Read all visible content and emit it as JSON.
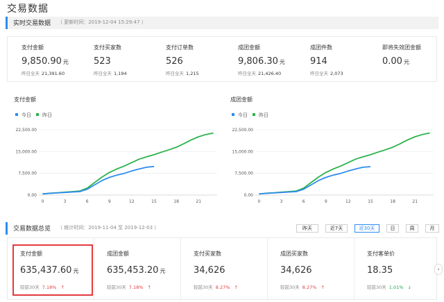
{
  "page": {
    "title": "交易数据"
  },
  "realtime": {
    "title": "实时交易数据",
    "update_time": "（ 更新时间：2019-12-04 15:29:47 ）",
    "metrics": [
      {
        "label": "支付金额",
        "value": "9,850.90",
        "unit": "元",
        "sub_label": "昨日全天",
        "sub_value": "21,391.60"
      },
      {
        "label": "支付买家数",
        "value": "523",
        "unit": "",
        "sub_label": "昨日全天",
        "sub_value": "1,194"
      },
      {
        "label": "支付订单数",
        "value": "526",
        "unit": "",
        "sub_label": "昨日全天",
        "sub_value": "1,215"
      },
      {
        "label": "成团金额",
        "value": "9,806.30",
        "unit": "元",
        "sub_label": "昨日全天",
        "sub_value": "21,426.40"
      },
      {
        "label": "成团件数",
        "value": "914",
        "unit": "",
        "sub_label": "昨日全天",
        "sub_value": "2,073"
      },
      {
        "label": "即将失效团金额",
        "value": "0.00",
        "unit": "元",
        "sub_label": "",
        "sub_value": ""
      }
    ]
  },
  "charts": [
    {
      "title": "支付金额"
    },
    {
      "title": "成团金额"
    }
  ],
  "chart_data": [
    {
      "type": "line",
      "title": "支付金额",
      "legend": [
        "今日",
        "昨日"
      ],
      "legend_position": "top-left",
      "x_ticks": [
        "0",
        "3",
        "6",
        "9",
        "12",
        "15",
        "18",
        "21"
      ],
      "y_ticks": [
        "0.00",
        "7,500.00",
        "15,000.00",
        "22,500.00"
      ],
      "xlim": [
        -0.5,
        23.5
      ],
      "ylim": [
        0,
        22500
      ],
      "grid": true,
      "series": [
        {
          "name": "今日",
          "color": "#2d8cf0",
          "x": [
            0,
            1,
            2,
            3,
            4,
            5,
            6,
            7,
            8,
            9,
            10,
            11,
            12,
            13,
            14,
            15
          ],
          "y": [
            400,
            600,
            750,
            900,
            1050,
            1200,
            2000,
            3500,
            5000,
            6100,
            6900,
            7500,
            8300,
            9000,
            9600,
            9850
          ]
        },
        {
          "name": "昨日",
          "color": "#2bb24c",
          "x": [
            0,
            1,
            2,
            3,
            4,
            5,
            6,
            7,
            8,
            9,
            10,
            11,
            12,
            13,
            14,
            15,
            16,
            17,
            18,
            19,
            20,
            21,
            22,
            23
          ],
          "y": [
            400,
            650,
            800,
            1000,
            1200,
            1400,
            2400,
            4300,
            6200,
            7800,
            9000,
            10000,
            11200,
            12400,
            13200,
            13900,
            14800,
            15600,
            16500,
            17700,
            19000,
            20100,
            20900,
            21390
          ]
        }
      ]
    },
    {
      "type": "line",
      "title": "成团金额",
      "legend": [
        "今日",
        "昨日"
      ],
      "legend_position": "top-left",
      "x_ticks": [
        "0",
        "3",
        "6",
        "9",
        "12",
        "15",
        "18",
        "21"
      ],
      "y_ticks": [
        "0.00",
        "7,500.00",
        "15,000.00",
        "22,500.00"
      ],
      "xlim": [
        -0.5,
        23.5
      ],
      "ylim": [
        0,
        22500
      ],
      "grid": true,
      "series": [
        {
          "name": "今日",
          "color": "#2d8cf0",
          "x": [
            0,
            1,
            2,
            3,
            4,
            5,
            6,
            7,
            8,
            9,
            10,
            11,
            12,
            13,
            14,
            15
          ],
          "y": [
            400,
            600,
            750,
            900,
            1050,
            1200,
            2000,
            3500,
            5000,
            6100,
            6900,
            7500,
            8300,
            9000,
            9600,
            9800
          ]
        },
        {
          "name": "昨日",
          "color": "#2bb24c",
          "x": [
            0,
            1,
            2,
            3,
            4,
            5,
            6,
            7,
            8,
            9,
            10,
            11,
            12,
            13,
            14,
            15,
            16,
            17,
            18,
            19,
            20,
            21,
            22,
            23
          ],
          "y": [
            400,
            650,
            800,
            1000,
            1200,
            1400,
            2400,
            4300,
            6200,
            7800,
            9000,
            10000,
            11200,
            12400,
            13200,
            13900,
            14800,
            15600,
            16500,
            17700,
            19000,
            20100,
            20900,
            21420
          ]
        }
      ]
    }
  ],
  "overview": {
    "title": "交易数据总览",
    "stat_time": "（ 统计时间：2019-11-04 至 2019-12-03 ）",
    "range_tabs": [
      "昨天",
      "近7天",
      "近30天",
      "日",
      "周",
      "月"
    ],
    "active_tab": "近30天",
    "metrics": [
      {
        "label": "支付金额",
        "value": "635,437.60",
        "unit": "元",
        "cmp_label": "较前30天",
        "cmp_value": "7.18%",
        "trend": "up",
        "trend_arrow": "↑"
      },
      {
        "label": "成团金额",
        "value": "635,453.20",
        "unit": "元",
        "cmp_label": "较前30天",
        "cmp_value": "7.18%",
        "trend": "up",
        "trend_arrow": "↑"
      },
      {
        "label": "支付买家数",
        "value": "34,626",
        "unit": "",
        "cmp_label": "较前30天",
        "cmp_value": "8.27%",
        "trend": "up",
        "trend_arrow": "↑"
      },
      {
        "label": "成团买家数",
        "value": "34,626",
        "unit": "",
        "cmp_label": "较前30天",
        "cmp_value": "8.27%",
        "trend": "up",
        "trend_arrow": "↑"
      },
      {
        "label": "支付客单价",
        "value": "18.35",
        "unit": "",
        "cmp_label": "较前30天",
        "cmp_value": "1.01%",
        "trend": "down",
        "trend_arrow": "↓"
      }
    ],
    "next_arrow": "›"
  },
  "colors": {
    "accent": "#2d8cf0",
    "today": "#2d8cf0",
    "yesterday": "#2bb24c",
    "up": "#e4393c",
    "down": "#1aa34a"
  }
}
